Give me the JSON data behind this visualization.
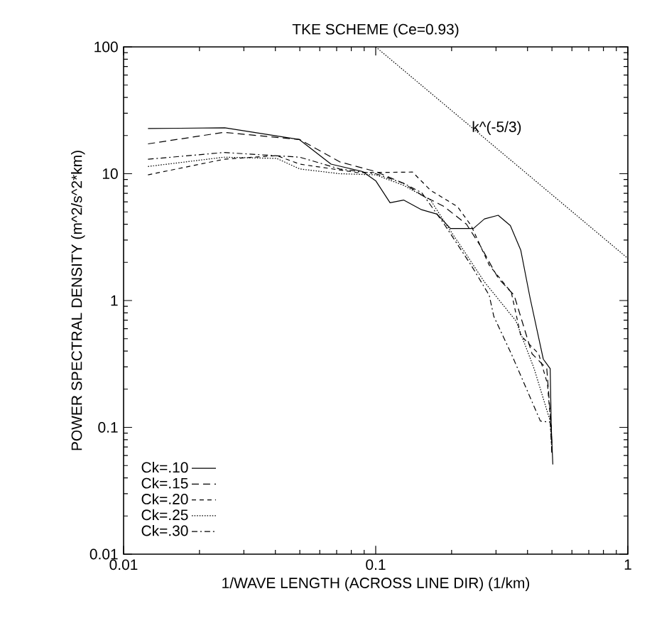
{
  "chart_data": {
    "type": "line",
    "title": "TKE SCHEME (Ce=0.93)",
    "xlabel": "1/WAVE LENGTH (ACROSS LINE DIR) (1/km)",
    "ylabel": "POWER SPECTRAL DENSITY (m^2/s^2*km)",
    "log": "xy",
    "xlim": [
      0.01,
      1
    ],
    "ylim": [
      0.01,
      100
    ],
    "xticks": [
      0.01,
      0.1,
      1
    ],
    "yticks": [
      0.01,
      0.1,
      1,
      10,
      100
    ],
    "grid": false,
    "legend": "bottom left",
    "annotations": [
      "k^(-5/3)"
    ],
    "series": [
      {
        "name": "Ck=.10",
        "color": "#000000",
        "line_style": "solid",
        "x": [
          0.0125,
          0.0252,
          0.0498,
          0.0665,
          0.0887,
          0.1,
          0.114,
          0.129,
          0.152,
          0.175,
          0.198,
          0.244,
          0.27,
          0.306,
          0.342,
          0.376,
          0.409,
          0.462,
          0.492,
          0.497,
          0.504
        ],
        "values": [
          22.7,
          23,
          18.6,
          11.9,
          10.4,
          8.8,
          5.9,
          6.2,
          5.2,
          4.8,
          3.7,
          3.7,
          4.4,
          4.7,
          3.9,
          2.5,
          1.06,
          0.345,
          0.29,
          0.1,
          0.051
        ]
      },
      {
        "name": "Ck=.15",
        "color": "#000000",
        "line_style": "dashed",
        "x": [
          0.0125,
          0.025,
          0.05,
          0.072,
          0.1,
          0.129,
          0.152,
          0.187,
          0.229,
          0.26,
          0.306,
          0.354,
          0.417,
          0.477,
          0.497,
          0.5
        ],
        "values": [
          17.2,
          21.2,
          18.6,
          12.4,
          10.4,
          8.4,
          6.8,
          5.5,
          4.0,
          2.7,
          1.5,
          1.1,
          0.38,
          0.29,
          0.1,
          0.063
        ]
      },
      {
        "name": "Ck=.20",
        "color": "#000000",
        "line_style": "densely dashed",
        "x": [
          0.0125,
          0.025,
          0.0405,
          0.05,
          0.085,
          0.14,
          0.165,
          0.211,
          0.239,
          0.282,
          0.345,
          0.376,
          0.443,
          0.48,
          0.497,
          0.5
        ],
        "values": [
          9.8,
          13,
          13.9,
          11.9,
          10.2,
          10.3,
          7.4,
          5.5,
          3.9,
          1.9,
          1.16,
          0.53,
          0.38,
          0.22,
          0.094,
          0.061
        ]
      },
      {
        "name": "Ck=.25",
        "color": "#000000",
        "line_style": "dotted",
        "x": [
          0.0125,
          0.025,
          0.0405,
          0.05,
          0.072,
          0.1,
          0.129,
          0.165,
          0.187,
          0.229,
          0.27,
          0.36,
          0.425,
          0.492,
          0.5
        ],
        "values": [
          11.4,
          13.5,
          13.2,
          10.9,
          10,
          9.8,
          8.1,
          6.2,
          4.2,
          2.3,
          1.4,
          0.69,
          0.29,
          0.112,
          0.063
        ]
      },
      {
        "name": "Ck=.30",
        "color": "#000000",
        "line_style": "dashdot",
        "x": [
          0.0125,
          0.025,
          0.05,
          0.072,
          0.1,
          0.129,
          0.152,
          0.187,
          0.239,
          0.282,
          0.294,
          0.345,
          0.45,
          0.492,
          0.5
        ],
        "values": [
          13,
          14.7,
          13.5,
          10.9,
          10,
          8.4,
          7.1,
          4.0,
          1.9,
          1.1,
          0.75,
          0.38,
          0.112,
          0.11,
          0.063
        ]
      },
      {
        "color": "#000000",
        "line_style": "dotted",
        "x": [
          0.1,
          1
        ],
        "values": [
          100,
          2.15
        ]
      }
    ]
  }
}
